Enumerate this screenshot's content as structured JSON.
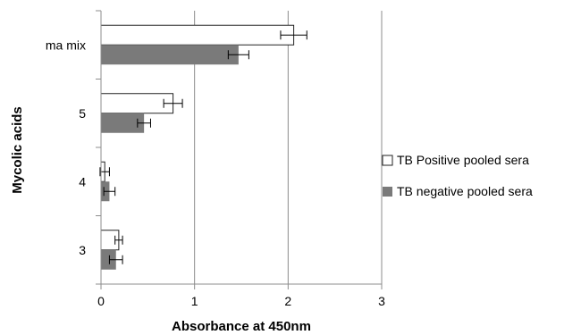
{
  "chart_data": {
    "type": "bar",
    "orientation": "horizontal",
    "categories": [
      "ma mix",
      "5",
      "4",
      "3"
    ],
    "series": [
      {
        "name": "TB Positive pooled sera",
        "values": [
          2.06,
          0.77,
          0.04,
          0.19
        ],
        "errors": [
          0.14,
          0.1,
          0.05,
          0.04
        ],
        "color": "#ffffff"
      },
      {
        "name": "TB negative pooled sera",
        "values": [
          1.47,
          0.46,
          0.09,
          0.16
        ],
        "errors": [
          0.11,
          0.07,
          0.06,
          0.07
        ],
        "color": "#7a7a7a"
      }
    ],
    "xlabel": "Absorbance at 450nm",
    "ylabel": "Mycolic acids",
    "xlim": [
      0,
      3
    ],
    "x_ticks": [
      "0",
      "1",
      "2",
      "3"
    ],
    "grid": "vertical",
    "legend": "right"
  }
}
